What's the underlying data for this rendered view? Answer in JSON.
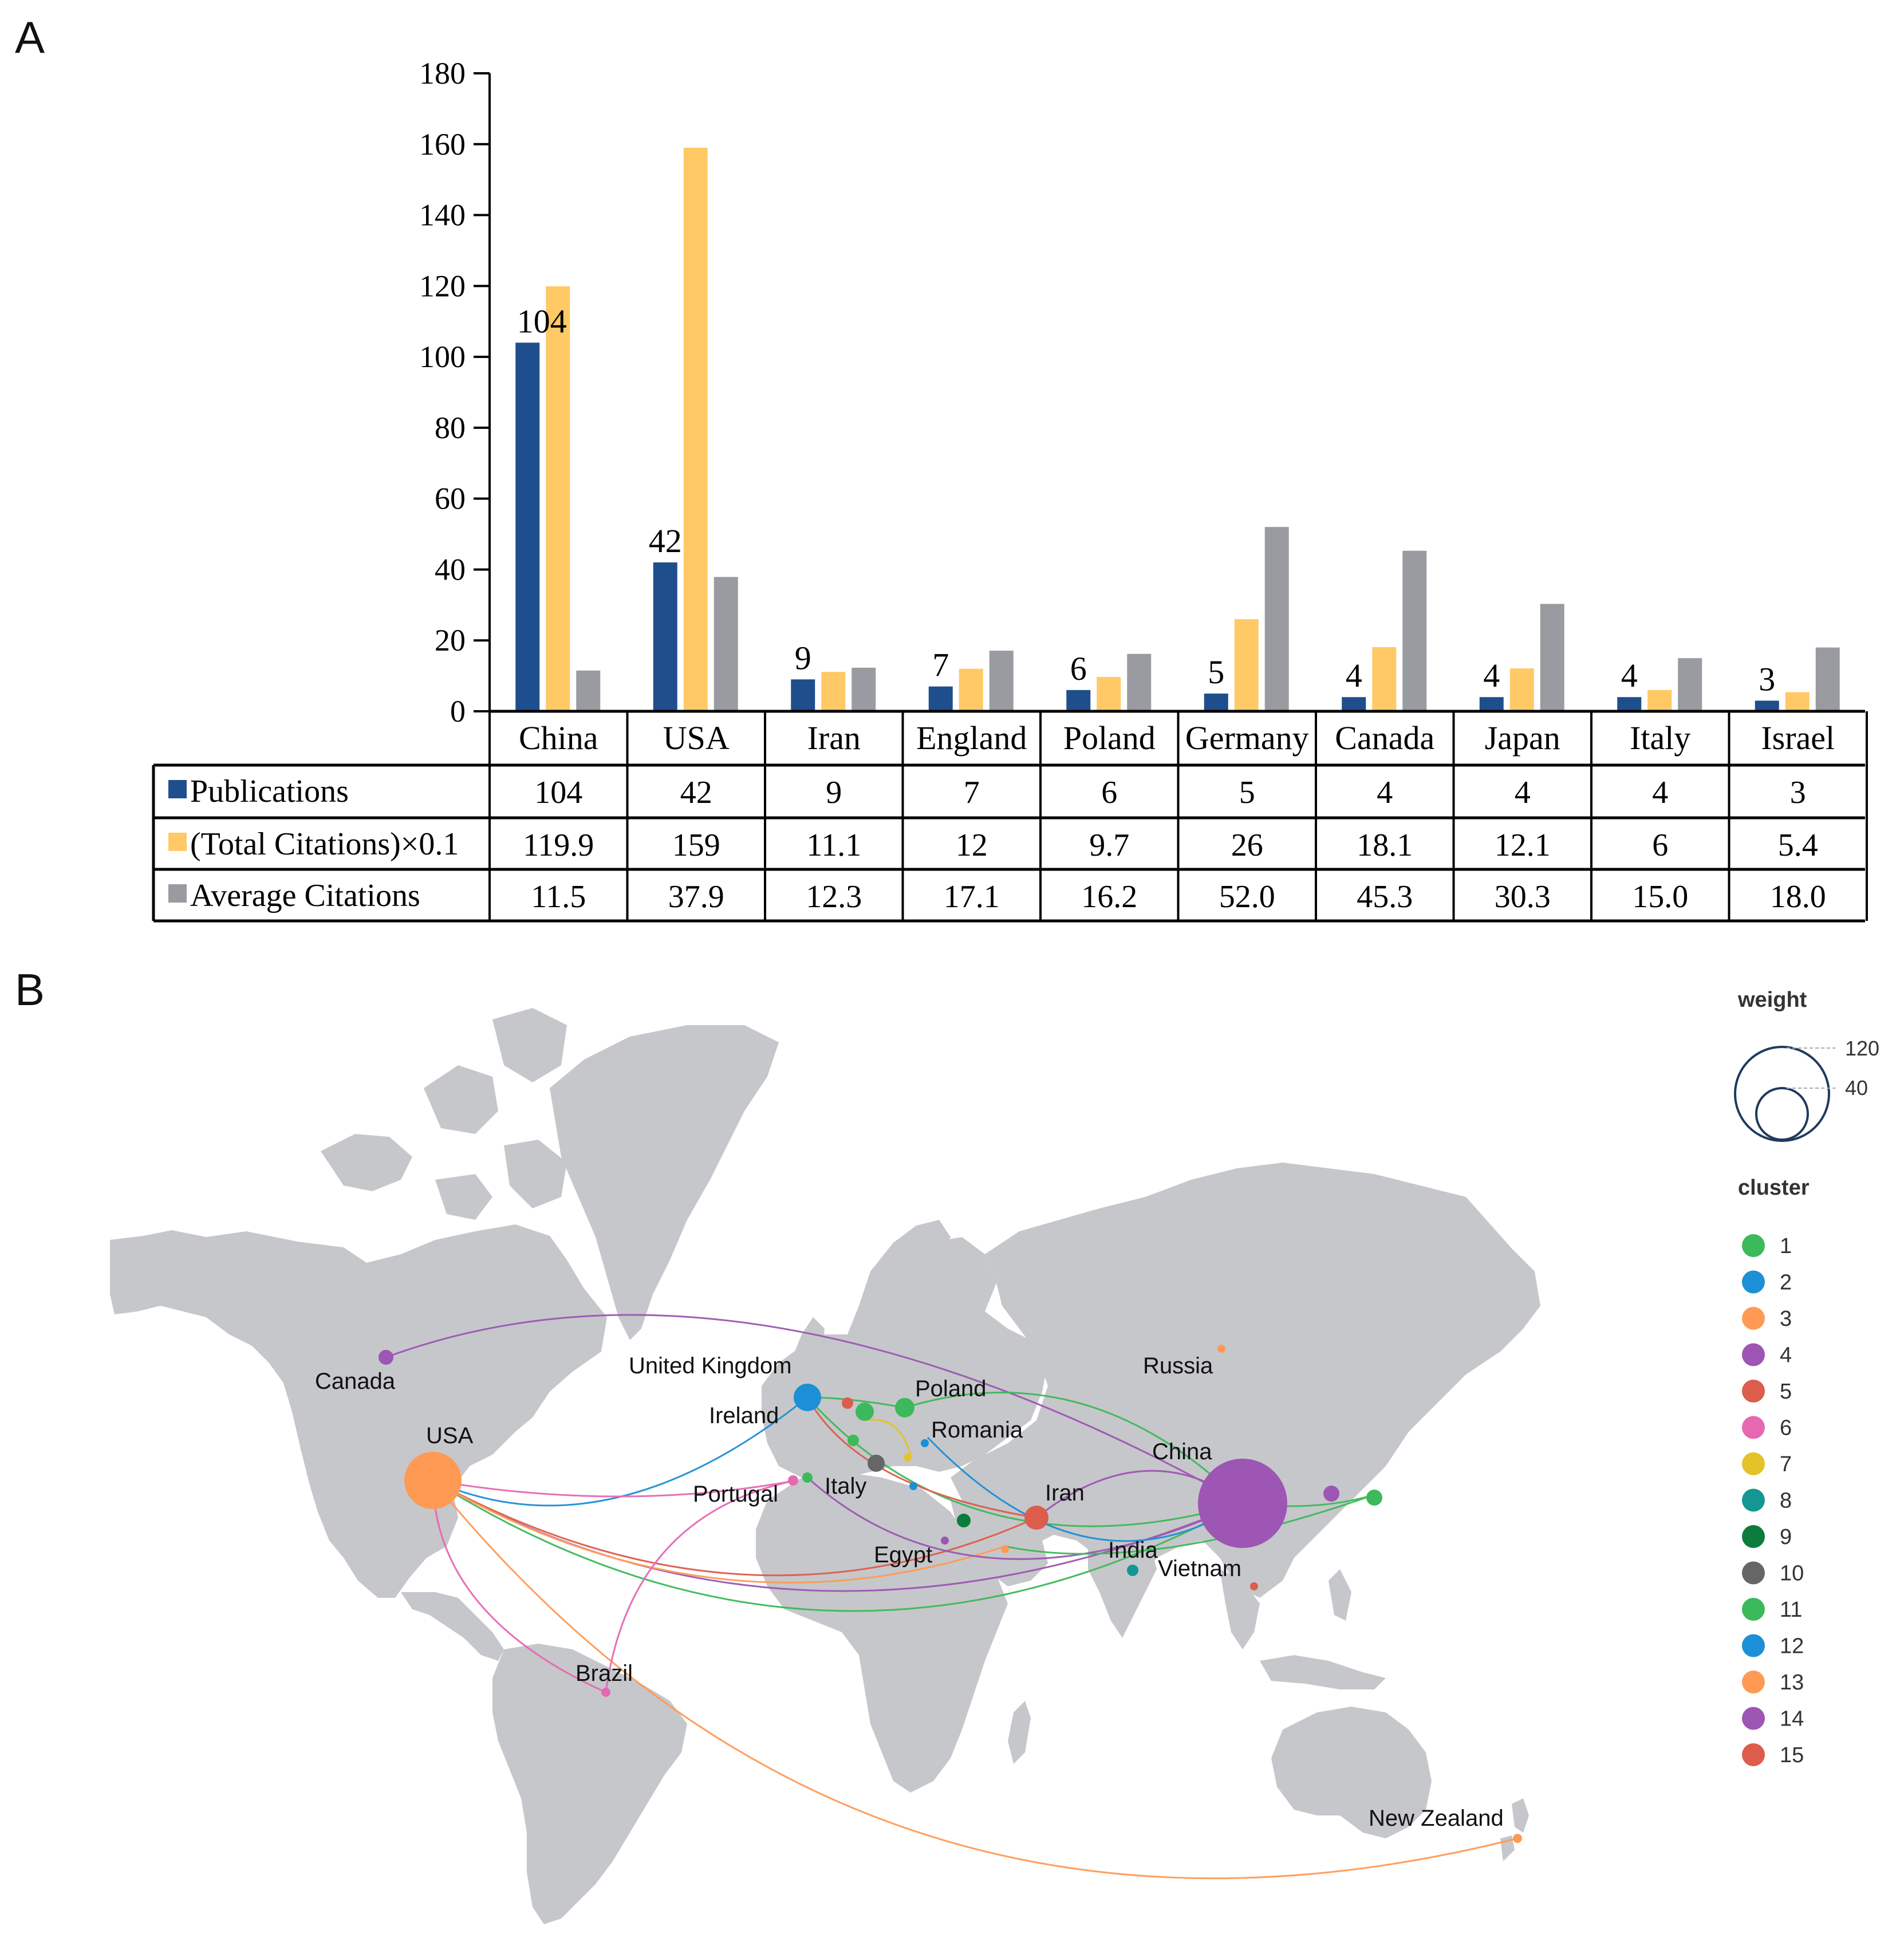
{
  "panel_a": {
    "letter": "A",
    "chart_data": {
      "type": "bar",
      "title": "",
      "xlabel": "",
      "ylabel": "",
      "ylim": [
        0,
        180
      ],
      "yticks": [
        0,
        20,
        40,
        60,
        80,
        100,
        120,
        140,
        160,
        180
      ],
      "categories": [
        "China",
        "USA",
        "Iran",
        "England",
        "Poland",
        "Germany",
        "Canada",
        "Japan",
        "Italy",
        "Israel"
      ],
      "series": [
        {
          "name": "Publications",
          "color": "#1f4e8c",
          "values": [
            104,
            42,
            9,
            7,
            6,
            5,
            4,
            4,
            4,
            3
          ],
          "table": [
            "104",
            "42",
            "9",
            "7",
            "6",
            "5",
            "4",
            "4",
            "4",
            "3"
          ]
        },
        {
          "name": "(Total Citations)×0.1",
          "color": "#ffc966",
          "values": [
            119.9,
            159,
            11.1,
            12,
            9.7,
            26,
            18.1,
            12.1,
            6,
            5.4
          ],
          "table": [
            "119.9",
            "159",
            "11.1",
            "12",
            "9.7",
            "26",
            "18.1",
            "12.1",
            "6",
            "5.4"
          ]
        },
        {
          "name": "Average Citations",
          "color": "#999ba0",
          "values": [
            11.5,
            37.9,
            12.3,
            17.1,
            16.2,
            52.0,
            45.3,
            30.3,
            15.0,
            18.0
          ],
          "table": [
            "11.5",
            "37.9",
            "12.3",
            "17.1",
            "16.2",
            "52.0",
            "45.3",
            "30.3",
            "15.0",
            "18.0"
          ]
        }
      ],
      "data_labels": [
        "104",
        "42",
        "9",
        "7",
        "6",
        "5",
        "4",
        "4",
        "4",
        "3"
      ],
      "legend": "data-table-below-axis"
    }
  },
  "panel_b": {
    "letter": "B",
    "map_type": "world collaboration network map",
    "land_color": "#c6c7ca",
    "legend": {
      "weight_title": "weight",
      "weight_values": [
        "120",
        "40"
      ],
      "cluster_title": "cluster",
      "clusters": [
        {
          "label": "1",
          "color": "#3cb95a"
        },
        {
          "label": "2",
          "color": "#1d8fd6"
        },
        {
          "label": "3",
          "color": "#ff9a55"
        },
        {
          "label": "4",
          "color": "#9d56b3"
        },
        {
          "label": "5",
          "color": "#dc5d4c"
        },
        {
          "label": "6",
          "color": "#e668b3"
        },
        {
          "label": "7",
          "color": "#e3c329"
        },
        {
          "label": "8",
          "color": "#149693"
        },
        {
          "label": "9",
          "color": "#0c7c3c"
        },
        {
          "label": "10",
          "color": "#666666"
        },
        {
          "label": "11",
          "color": "#3cb95a"
        },
        {
          "label": "12",
          "color": "#1d8fd6"
        },
        {
          "label": "13",
          "color": "#ff9a55"
        },
        {
          "label": "14",
          "color": "#9d56b3"
        },
        {
          "label": "15",
          "color": "#dc5d4c"
        }
      ]
    },
    "countries": [
      {
        "name": "China",
        "cluster": 14,
        "weight": 104
      },
      {
        "name": "USA",
        "cluster": 3,
        "weight": 42
      },
      {
        "name": "Iran",
        "cluster": 5,
        "weight": 9
      },
      {
        "name": "United Kingdom",
        "cluster": 2,
        "weight": 7
      },
      {
        "name": "Poland",
        "cluster": 1,
        "weight": 6
      },
      {
        "name": "Canada",
        "cluster": 4,
        "weight": 4
      },
      {
        "name": "Russia",
        "cluster": 3,
        "weight": 1
      },
      {
        "name": "Ireland",
        "cluster": 5,
        "weight": 1
      },
      {
        "name": "Romania",
        "cluster": 2,
        "weight": 1
      },
      {
        "name": "Portugal",
        "cluster": 6,
        "weight": 1
      },
      {
        "name": "Italy",
        "cluster": 1,
        "weight": 4
      },
      {
        "name": "Egypt",
        "cluster": 4,
        "weight": 1
      },
      {
        "name": "India",
        "cluster": 8,
        "weight": 1
      },
      {
        "name": "Vietnam",
        "cluster": 5,
        "weight": 1
      },
      {
        "name": "Brazil",
        "cluster": 6,
        "weight": 1
      },
      {
        "name": "New Zealand",
        "cluster": 3,
        "weight": 1
      }
    ]
  }
}
